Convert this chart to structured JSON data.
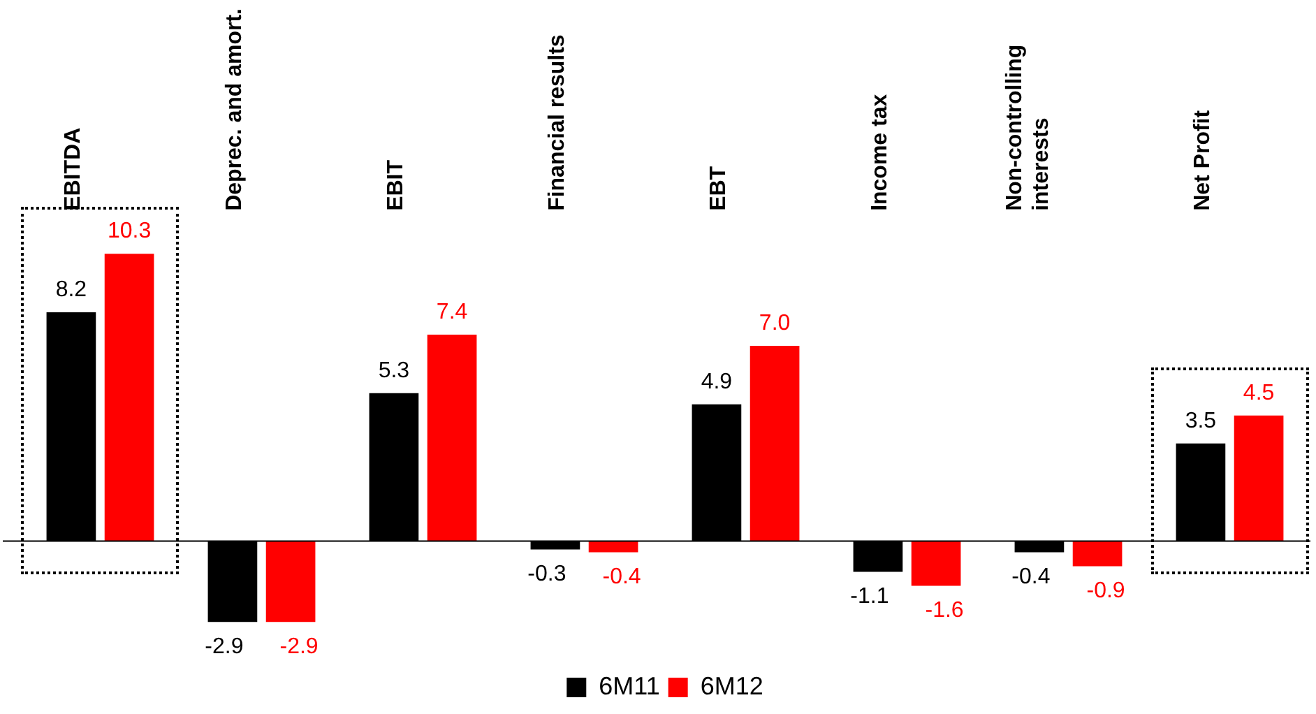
{
  "chart_data": {
    "type": "bar",
    "categories": [
      "EBITDA",
      "Deprec. and amort.",
      "EBIT",
      "Financial results",
      "EBT",
      "Income tax",
      "Non-controlling interests",
      "Net Profit"
    ],
    "series": [
      {
        "name": "6M11",
        "color": "#000000",
        "values": [
          8.2,
          -2.9,
          5.3,
          -0.3,
          4.9,
          -1.1,
          -0.4,
          3.5
        ],
        "value_labels": [
          "8.2",
          "-2.9",
          "5.3",
          "-0.3",
          "4.9",
          "-1.1",
          "-0.4",
          "3.5"
        ]
      },
      {
        "name": "6M12",
        "color": "#ff0000",
        "values": [
          10.3,
          -2.9,
          7.4,
          -0.4,
          7.0,
          -1.6,
          -0.9,
          4.5
        ],
        "value_labels": [
          "10.3",
          "-2.9",
          "7.4",
          "-0.4",
          "7.0",
          "-1.6",
          "-0.9",
          "4.5"
        ]
      }
    ],
    "legend": "bottom",
    "grid": false
  }
}
